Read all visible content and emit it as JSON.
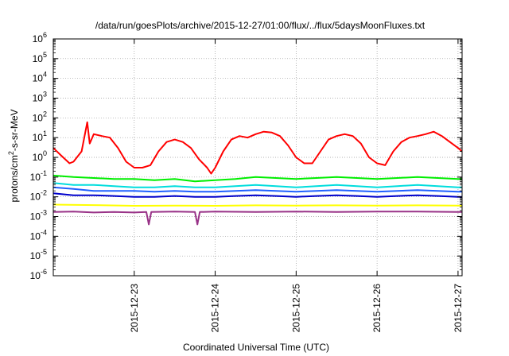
{
  "chart_data": {
    "type": "line",
    "title": "/data/run/goesPlots/archive/2015-12-27/01:00/flux/../flux/5daysMoonFluxes.txt",
    "xlabel": "Coordinated Universal Time (UTC)",
    "ylabel": {
      "base": "protons/cm",
      "sup": "2",
      "rest": "-s-sr-MeV"
    },
    "yscale": "log",
    "ylim": [
      1e-06,
      1000000.0
    ],
    "xlim": [
      0,
      5.05
    ],
    "grid": true,
    "y_ticks": [
      {
        "value": 1e-06,
        "base": "10",
        "exp": "-6"
      },
      {
        "value": 1e-05,
        "base": "10",
        "exp": "-5"
      },
      {
        "value": 0.0001,
        "base": "10",
        "exp": "-4"
      },
      {
        "value": 0.001,
        "base": "10",
        "exp": "-3"
      },
      {
        "value": 0.01,
        "base": "10",
        "exp": "-2"
      },
      {
        "value": 0.1,
        "base": "10",
        "exp": "-1"
      },
      {
        "value": 1,
        "base": "10",
        "exp": "0"
      },
      {
        "value": 10,
        "base": "10",
        "exp": "1"
      },
      {
        "value": 100,
        "base": "10",
        "exp": "2"
      },
      {
        "value": 1000,
        "base": "10",
        "exp": "3"
      },
      {
        "value": 10000,
        "base": "10",
        "exp": "4"
      },
      {
        "value": 100000,
        "base": "10",
        "exp": "5"
      },
      {
        "value": 1000000,
        "base": "10",
        "exp": "6"
      }
    ],
    "x_ticks": [
      {
        "value": 1,
        "label": "2015-12-23"
      },
      {
        "value": 2,
        "label": "2015-12-24"
      },
      {
        "value": 3,
        "label": "2015-12-25"
      },
      {
        "value": 4,
        "label": "2015-12-26"
      },
      {
        "value": 5,
        "label": "2015-12-27"
      }
    ],
    "series": [
      {
        "color": "#ff0000",
        "x": [
          0,
          0.1,
          0.2,
          0.25,
          0.35,
          0.42,
          0.45,
          0.5,
          0.6,
          0.7,
          0.8,
          0.9,
          1.0,
          1.1,
          1.2,
          1.3,
          1.4,
          1.5,
          1.6,
          1.7,
          1.8,
          1.9,
          1.95,
          2.0,
          2.1,
          2.2,
          2.3,
          2.4,
          2.5,
          2.6,
          2.7,
          2.8,
          2.9,
          3.0,
          3.1,
          3.2,
          3.3,
          3.4,
          3.5,
          3.6,
          3.7,
          3.8,
          3.9,
          4.0,
          4.1,
          4.2,
          4.3,
          4.4,
          4.5,
          4.6,
          4.7,
          4.8,
          4.9,
          5.0,
          5.05
        ],
        "y": [
          3,
          1.2,
          0.5,
          0.6,
          2,
          60,
          5,
          15,
          12,
          10,
          3,
          0.6,
          0.3,
          0.3,
          0.4,
          2,
          6,
          8,
          6,
          3,
          0.8,
          0.3,
          0.15,
          0.3,
          2,
          8,
          12,
          10,
          15,
          20,
          18,
          12,
          4,
          1,
          0.5,
          0.5,
          2,
          8,
          12,
          15,
          12,
          5,
          1,
          0.5,
          0.4,
          2,
          6,
          10,
          12,
          15,
          20,
          12,
          6,
          3,
          2
        ]
      },
      {
        "color": "#00ee00",
        "x": [
          0,
          0.25,
          0.5,
          0.75,
          1.0,
          1.25,
          1.5,
          1.75,
          2.0,
          2.25,
          2.5,
          2.75,
          3.0,
          3.25,
          3.5,
          3.75,
          4.0,
          4.25,
          4.5,
          4.75,
          5.0,
          5.05
        ],
        "y": [
          0.12,
          0.1,
          0.09,
          0.08,
          0.08,
          0.07,
          0.08,
          0.06,
          0.07,
          0.08,
          0.1,
          0.09,
          0.08,
          0.09,
          0.1,
          0.09,
          0.08,
          0.09,
          0.1,
          0.09,
          0.08,
          0.08
        ]
      },
      {
        "color": "#00dddd",
        "x": [
          0,
          0.25,
          0.5,
          0.75,
          1.0,
          1.25,
          1.5,
          1.75,
          2.0,
          2.25,
          2.5,
          2.75,
          3.0,
          3.25,
          3.5,
          3.75,
          4.0,
          4.25,
          4.5,
          4.75,
          5.0,
          5.05
        ],
        "y": [
          0.05,
          0.04,
          0.04,
          0.035,
          0.03,
          0.03,
          0.035,
          0.03,
          0.03,
          0.035,
          0.04,
          0.035,
          0.03,
          0.035,
          0.04,
          0.035,
          0.03,
          0.035,
          0.04,
          0.035,
          0.03,
          0.03
        ]
      },
      {
        "color": "#2060ff",
        "x": [
          0,
          0.25,
          0.5,
          0.75,
          1.0,
          1.25,
          1.5,
          1.75,
          2.0,
          2.25,
          2.5,
          2.75,
          3.0,
          3.25,
          3.5,
          3.75,
          4.0,
          4.25,
          4.5,
          4.75,
          5.0,
          5.05
        ],
        "y": [
          0.03,
          0.025,
          0.02,
          0.02,
          0.02,
          0.018,
          0.02,
          0.018,
          0.018,
          0.02,
          0.022,
          0.02,
          0.018,
          0.02,
          0.022,
          0.02,
          0.018,
          0.02,
          0.022,
          0.02,
          0.018,
          0.018
        ]
      },
      {
        "color": "#0000cc",
        "x": [
          0,
          0.25,
          0.5,
          0.75,
          1.0,
          1.25,
          1.5,
          1.75,
          2.0,
          2.25,
          2.5,
          2.75,
          3.0,
          3.25,
          3.5,
          3.75,
          4.0,
          4.25,
          4.5,
          4.75,
          5.0,
          5.05
        ],
        "y": [
          0.015,
          0.012,
          0.012,
          0.011,
          0.01,
          0.01,
          0.011,
          0.01,
          0.01,
          0.011,
          0.012,
          0.011,
          0.01,
          0.011,
          0.012,
          0.011,
          0.01,
          0.011,
          0.012,
          0.011,
          0.01,
          0.01
        ]
      },
      {
        "color": "#ffff00",
        "x": [
          0,
          0.5,
          1.0,
          1.5,
          2.0,
          2.5,
          3.0,
          3.5,
          4.0,
          4.5,
          5.0,
          5.05
        ],
        "y": [
          0.004,
          0.0038,
          0.0035,
          0.0036,
          0.0035,
          0.0037,
          0.0036,
          0.0037,
          0.0036,
          0.0037,
          0.0036,
          0.0036
        ]
      },
      {
        "color": "#993388",
        "x": [
          0,
          0.25,
          0.5,
          0.75,
          1.0,
          1.15,
          1.18,
          1.21,
          1.5,
          1.75,
          1.78,
          1.81,
          2.0,
          2.5,
          3.0,
          3.5,
          4.0,
          4.5,
          5.0,
          5.05
        ],
        "y": [
          0.0017,
          0.0018,
          0.0016,
          0.0017,
          0.0016,
          0.0017,
          0.0004,
          0.0017,
          0.0018,
          0.0017,
          0.0004,
          0.0017,
          0.0018,
          0.0017,
          0.0018,
          0.0017,
          0.0018,
          0.0018,
          0.0017,
          0.0017
        ]
      }
    ]
  }
}
